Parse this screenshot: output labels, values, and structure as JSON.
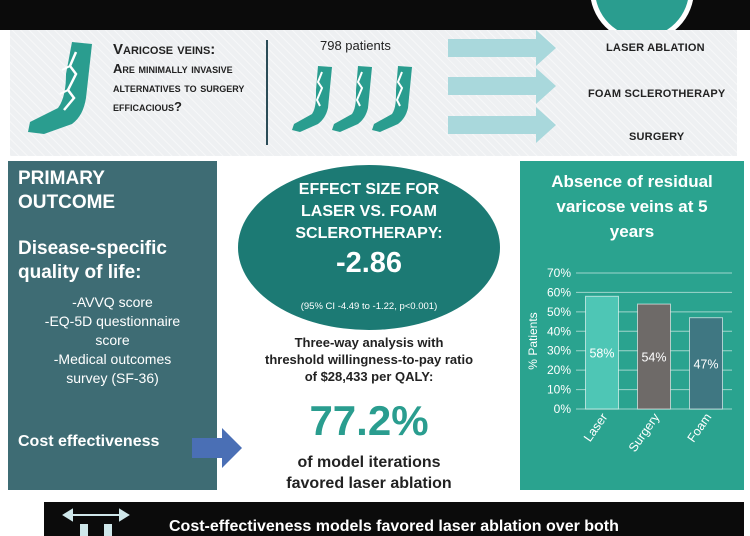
{
  "header": {
    "question_line1": "Varicose veins:",
    "question_line2": "Are minimally invasive alternatives to surgery efficacious?",
    "patients": "798 patients",
    "arms": [
      "LASER ABLATION",
      "FOAM SCLEROTHERAPY",
      "SURGERY"
    ]
  },
  "primary": {
    "title": "PRIMARY OUTCOME",
    "qol_title": "Disease-specific quality of life:",
    "measures": [
      "-AVVQ score",
      "-EQ-5D questionnaire score",
      "-Medical outcomes survey (SF-36)"
    ],
    "cost": "Cost effectiveness"
  },
  "effect": {
    "title": "EFFECT SIZE FOR LASER VS. FOAM SCLEROTHERAPY:",
    "value": "-2.86",
    "ci": "(95% CI -4.49 to -1.22, p<0.001)"
  },
  "analysis": {
    "text": "Three-way analysis with threshold willingness-to-pay ratio of $28,433 per QALY:",
    "percent": "77.2%",
    "favored": "of model iterations favored laser ablation"
  },
  "chart_data": {
    "type": "bar",
    "title": "Absence of residual varicose veins at 5 years",
    "ylabel": "% Patients",
    "categories": [
      "Laser",
      "Surgery",
      "Foam"
    ],
    "values": [
      58,
      54,
      47
    ],
    "value_labels": [
      "58%",
      "54%",
      "47%"
    ],
    "ylim": [
      0,
      70
    ],
    "yticks": [
      "0%",
      "10%",
      "20%",
      "30%",
      "40%",
      "50%",
      "60%",
      "70%"
    ],
    "grid": true,
    "colors": [
      "#4ec6b5",
      "#6e6a68",
      "#3f7782"
    ]
  },
  "bottom": {
    "text": "Cost-effectiveness models favored laser ablation over both"
  },
  "colors": {
    "teal_dark": "#1c7a74",
    "teal": "#2a9d8f",
    "slate": "#3e6c74",
    "arrow_blue": "#4a6fb5",
    "arrow_light": "#a9d8dc"
  }
}
